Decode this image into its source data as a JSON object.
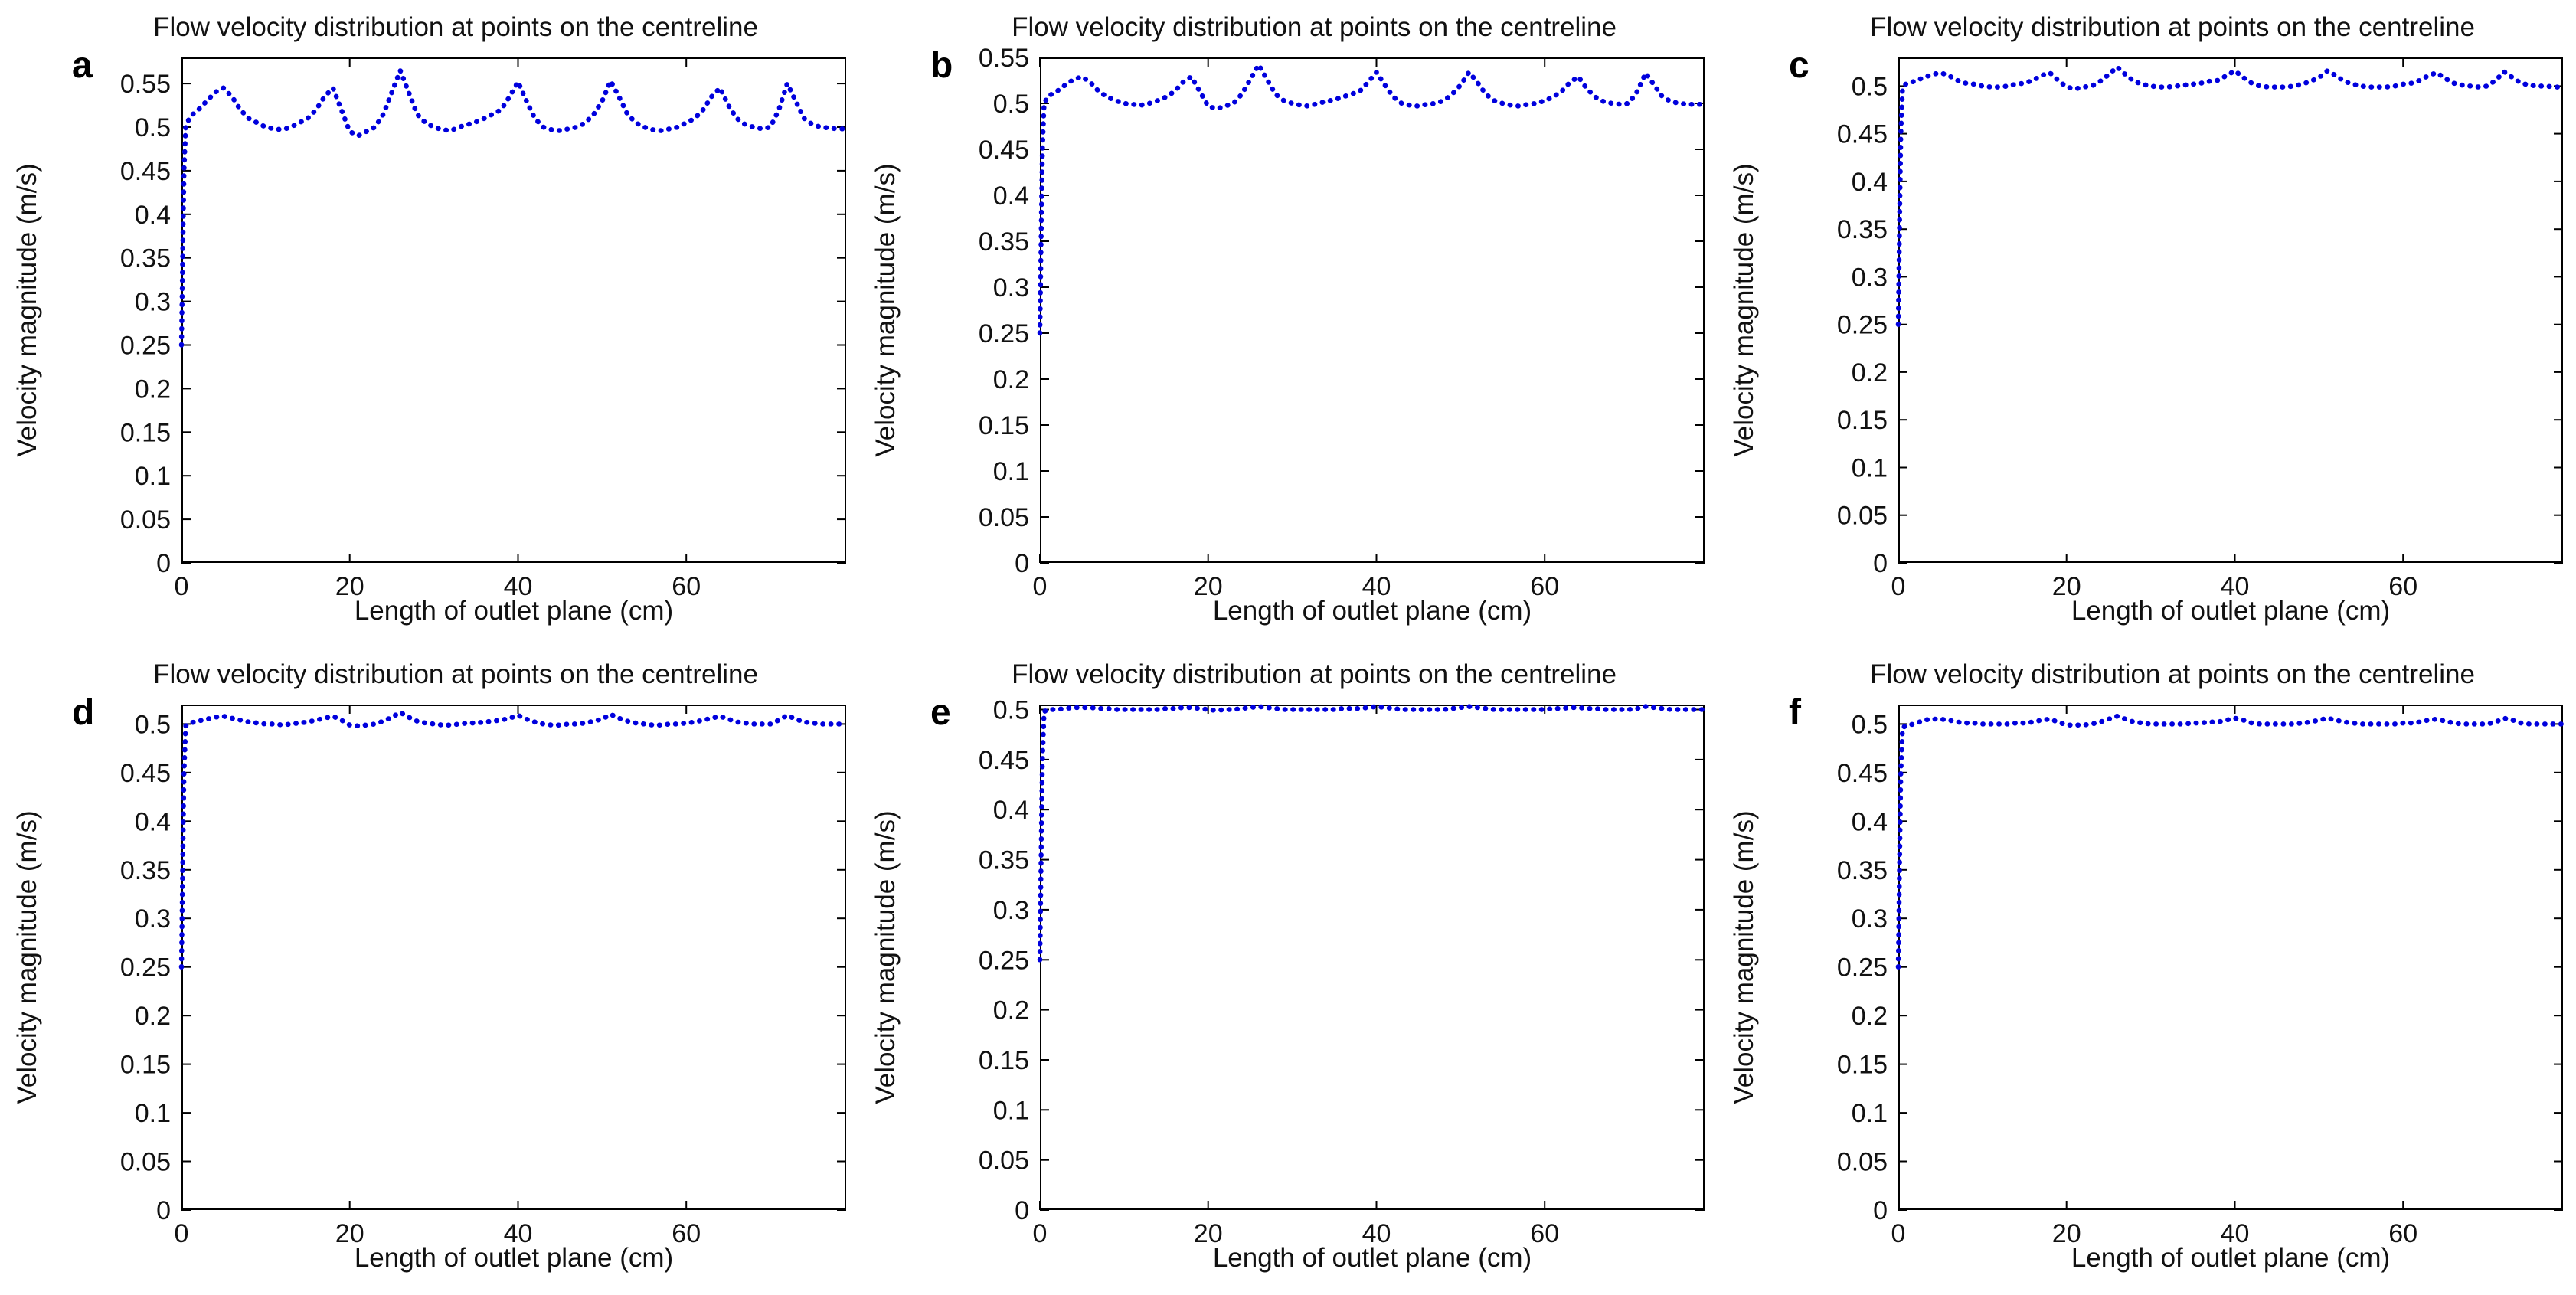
{
  "page": {
    "background": "#ffffff"
  },
  "chart_data": [
    {
      "type": "line",
      "panel_label": "a",
      "title": "Flow velocity distribution at points on the centreline",
      "xlabel": "Length of outlet plane (cm)",
      "ylabel": "Velocity magnitude (m/s)",
      "xlim": [
        0,
        79
      ],
      "ylim": [
        0,
        0.58
      ],
      "xticks": [
        0,
        20,
        40,
        60
      ],
      "yticks": [
        0,
        0.05,
        0.1,
        0.15,
        0.2,
        0.25,
        0.3,
        0.35,
        0.4,
        0.45,
        0.5,
        0.55
      ],
      "line_color": "#0000dd",
      "line_style": "dotted",
      "grid": false,
      "legend": "none",
      "x": [
        0,
        0.1,
        0.2,
        0.3,
        0.5,
        1,
        2,
        3,
        4,
        5,
        6,
        7,
        8,
        9,
        10,
        11,
        12,
        13,
        14,
        15,
        16,
        17,
        18,
        19,
        20,
        21,
        22,
        23,
        24,
        25,
        26,
        27,
        28,
        29,
        30,
        31,
        32,
        33,
        34,
        35,
        36,
        37,
        38,
        39,
        40,
        41,
        42,
        43,
        44,
        45,
        46,
        47,
        48,
        49,
        50,
        51,
        52,
        53,
        54,
        55,
        56,
        57,
        58,
        59,
        60,
        61,
        62,
        63,
        64,
        65,
        66,
        67,
        68,
        69,
        70,
        71,
        72,
        73,
        74,
        75,
        76,
        77,
        78,
        79
      ],
      "y": [
        0.25,
        0.32,
        0.39,
        0.45,
        0.5,
        0.512,
        0.52,
        0.53,
        0.54,
        0.545,
        0.535,
        0.52,
        0.51,
        0.505,
        0.5,
        0.498,
        0.497,
        0.5,
        0.505,
        0.51,
        0.52,
        0.535,
        0.545,
        0.52,
        0.495,
        0.49,
        0.495,
        0.5,
        0.515,
        0.54,
        0.565,
        0.54,
        0.515,
        0.505,
        0.5,
        0.497,
        0.496,
        0.5,
        0.503,
        0.506,
        0.51,
        0.515,
        0.52,
        0.535,
        0.552,
        0.53,
        0.51,
        0.5,
        0.497,
        0.496,
        0.498,
        0.5,
        0.505,
        0.515,
        0.53,
        0.553,
        0.535,
        0.515,
        0.505,
        0.5,
        0.497,
        0.496,
        0.498,
        0.5,
        0.505,
        0.51,
        0.52,
        0.535,
        0.545,
        0.525,
        0.51,
        0.503,
        0.5,
        0.498,
        0.5,
        0.52,
        0.55,
        0.53,
        0.51,
        0.503,
        0.5,
        0.499,
        0.498,
        0.498
      ]
    },
    {
      "type": "line",
      "panel_label": "b",
      "title": "Flow velocity distribution at points on the centreline",
      "xlabel": "Length of outlet plane (cm)",
      "ylabel": "Velocity magnitude (m/s)",
      "xlim": [
        0,
        79
      ],
      "ylim": [
        0,
        0.55
      ],
      "xticks": [
        0,
        20,
        40,
        60
      ],
      "yticks": [
        0,
        0.05,
        0.1,
        0.15,
        0.2,
        0.25,
        0.3,
        0.35,
        0.4,
        0.45,
        0.5,
        0.55
      ],
      "line_color": "#0000dd",
      "line_style": "dotted",
      "grid": false,
      "legend": "none",
      "x": [
        0,
        0.1,
        0.2,
        0.3,
        0.5,
        1,
        2,
        3,
        4,
        5,
        6,
        7,
        8,
        9,
        10,
        11,
        12,
        13,
        14,
        15,
        16,
        17,
        18,
        19,
        20,
        21,
        22,
        23,
        24,
        25,
        26,
        27,
        28,
        29,
        30,
        31,
        32,
        33,
        34,
        35,
        36,
        37,
        38,
        39,
        40,
        41,
        42,
        43,
        44,
        45,
        46,
        47,
        48,
        49,
        50,
        51,
        52,
        53,
        54,
        55,
        56,
        57,
        58,
        59,
        60,
        61,
        62,
        63,
        64,
        65,
        66,
        67,
        68,
        69,
        70,
        71,
        72,
        73,
        74,
        75,
        76,
        77,
        78,
        79
      ],
      "y": [
        0.25,
        0.32,
        0.39,
        0.45,
        0.5,
        0.508,
        0.513,
        0.52,
        0.526,
        0.529,
        0.523,
        0.513,
        0.507,
        0.503,
        0.5,
        0.499,
        0.498,
        0.5,
        0.503,
        0.507,
        0.513,
        0.523,
        0.529,
        0.513,
        0.497,
        0.494,
        0.497,
        0.5,
        0.51,
        0.526,
        0.542,
        0.526,
        0.51,
        0.503,
        0.5,
        0.498,
        0.497,
        0.5,
        0.502,
        0.504,
        0.507,
        0.51,
        0.513,
        0.523,
        0.534,
        0.52,
        0.507,
        0.5,
        0.498,
        0.497,
        0.499,
        0.5,
        0.503,
        0.51,
        0.52,
        0.534,
        0.523,
        0.51,
        0.503,
        0.5,
        0.498,
        0.497,
        0.499,
        0.5,
        0.503,
        0.507,
        0.513,
        0.523,
        0.529,
        0.516,
        0.507,
        0.502,
        0.5,
        0.499,
        0.5,
        0.513,
        0.533,
        0.52,
        0.507,
        0.502,
        0.5,
        0.499,
        0.499,
        0.499
      ]
    },
    {
      "type": "line",
      "panel_label": "c",
      "title": "Flow velocity distribution at points on the centreline",
      "xlabel": "Length of outlet plane (cm)",
      "ylabel": "Velocity magnitude (m/s)",
      "xlim": [
        0,
        79
      ],
      "ylim": [
        0,
        0.53
      ],
      "xticks": [
        0,
        20,
        40,
        60
      ],
      "yticks": [
        0,
        0.05,
        0.1,
        0.15,
        0.2,
        0.25,
        0.3,
        0.35,
        0.4,
        0.45,
        0.5
      ],
      "line_color": "#0000dd",
      "line_style": "dotted",
      "grid": false,
      "legend": "none",
      "x": [
        0,
        0.1,
        0.2,
        0.3,
        0.5,
        1,
        2,
        3,
        4,
        5,
        6,
        7,
        8,
        9,
        10,
        11,
        12,
        13,
        14,
        15,
        16,
        17,
        18,
        19,
        20,
        21,
        22,
        23,
        24,
        25,
        26,
        27,
        28,
        29,
        30,
        31,
        32,
        33,
        34,
        35,
        36,
        37,
        38,
        39,
        40,
        41,
        42,
        43,
        44,
        45,
        46,
        47,
        48,
        49,
        50,
        51,
        52,
        53,
        54,
        55,
        56,
        57,
        58,
        59,
        60,
        61,
        62,
        63,
        64,
        65,
        66,
        67,
        68,
        69,
        70,
        71,
        72,
        73,
        74,
        75,
        76,
        77,
        78,
        79
      ],
      "y": [
        0.25,
        0.32,
        0.39,
        0.45,
        0.498,
        0.503,
        0.505,
        0.509,
        0.512,
        0.514,
        0.511,
        0.506,
        0.503,
        0.502,
        0.5,
        0.499,
        0.499,
        0.5,
        0.502,
        0.503,
        0.506,
        0.511,
        0.514,
        0.506,
        0.499,
        0.497,
        0.499,
        0.5,
        0.505,
        0.512,
        0.52,
        0.512,
        0.505,
        0.502,
        0.5,
        0.499,
        0.499,
        0.5,
        0.501,
        0.502,
        0.503,
        0.505,
        0.506,
        0.511,
        0.516,
        0.509,
        0.503,
        0.5,
        0.499,
        0.499,
        0.499,
        0.5,
        0.502,
        0.505,
        0.509,
        0.516,
        0.511,
        0.505,
        0.502,
        0.5,
        0.499,
        0.499,
        0.499,
        0.5,
        0.502,
        0.503,
        0.506,
        0.511,
        0.514,
        0.508,
        0.503,
        0.501,
        0.5,
        0.499,
        0.5,
        0.506,
        0.515,
        0.509,
        0.503,
        0.501,
        0.5,
        0.5,
        0.499,
        0.499
      ]
    },
    {
      "type": "line",
      "panel_label": "d",
      "title": "Flow velocity distribution at points on the centreline",
      "xlabel": "Length of outlet plane (cm)",
      "ylabel": "Velocity magnitude (m/s)",
      "xlim": [
        0,
        79
      ],
      "ylim": [
        0,
        0.52
      ],
      "xticks": [
        0,
        20,
        40,
        60
      ],
      "yticks": [
        0,
        0.05,
        0.1,
        0.15,
        0.2,
        0.25,
        0.3,
        0.35,
        0.4,
        0.45,
        0.5
      ],
      "line_color": "#0000dd",
      "line_style": "dotted",
      "grid": false,
      "legend": "none",
      "x": [
        0,
        0.1,
        0.2,
        0.3,
        0.5,
        1,
        2,
        3,
        4,
        5,
        6,
        7,
        8,
        9,
        10,
        11,
        12,
        13,
        14,
        15,
        16,
        17,
        18,
        19,
        20,
        21,
        22,
        23,
        24,
        25,
        26,
        27,
        28,
        29,
        30,
        31,
        32,
        33,
        34,
        35,
        36,
        37,
        38,
        39,
        40,
        41,
        42,
        43,
        44,
        45,
        46,
        47,
        48,
        49,
        50,
        51,
        52,
        53,
        54,
        55,
        56,
        57,
        58,
        59,
        60,
        61,
        62,
        63,
        64,
        65,
        66,
        67,
        68,
        69,
        70,
        71,
        72,
        73,
        74,
        75,
        76,
        77,
        78,
        79
      ],
      "y": [
        0.25,
        0.32,
        0.39,
        0.45,
        0.498,
        0.501,
        0.503,
        0.505,
        0.507,
        0.508,
        0.506,
        0.504,
        0.502,
        0.501,
        0.5,
        0.5,
        0.499,
        0.5,
        0.501,
        0.502,
        0.504,
        0.506,
        0.508,
        0.504,
        0.499,
        0.498,
        0.499,
        0.5,
        0.503,
        0.507,
        0.512,
        0.507,
        0.503,
        0.501,
        0.5,
        0.499,
        0.499,
        0.5,
        0.501,
        0.501,
        0.502,
        0.503,
        0.504,
        0.506,
        0.509,
        0.505,
        0.502,
        0.5,
        0.499,
        0.499,
        0.5,
        0.5,
        0.501,
        0.503,
        0.505,
        0.51,
        0.506,
        0.503,
        0.501,
        0.5,
        0.499,
        0.499,
        0.5,
        0.5,
        0.501,
        0.502,
        0.504,
        0.506,
        0.508,
        0.505,
        0.502,
        0.501,
        0.5,
        0.5,
        0.5,
        0.504,
        0.509,
        0.505,
        0.502,
        0.501,
        0.5,
        0.5,
        0.5,
        0.5
      ]
    },
    {
      "type": "line",
      "panel_label": "e",
      "title": "Flow velocity distribution at points on the centreline",
      "xlabel": "Length of outlet plane (cm)",
      "ylabel": "Velocity magnitude (m/s)",
      "xlim": [
        0,
        79
      ],
      "ylim": [
        0,
        0.505
      ],
      "xticks": [
        0,
        20,
        40,
        60
      ],
      "yticks": [
        0,
        0.05,
        0.1,
        0.15,
        0.2,
        0.25,
        0.3,
        0.35,
        0.4,
        0.45,
        0.5
      ],
      "line_color": "#0000dd",
      "line_style": "dotted",
      "grid": false,
      "legend": "none",
      "x": [
        0,
        0.1,
        0.2,
        0.3,
        0.5,
        1,
        2,
        3,
        4,
        5,
        6,
        7,
        8,
        9,
        10,
        11,
        12,
        13,
        14,
        15,
        16,
        17,
        18,
        19,
        20,
        21,
        22,
        23,
        24,
        25,
        26,
        27,
        28,
        29,
        30,
        31,
        32,
        33,
        34,
        35,
        36,
        37,
        38,
        39,
        40,
        41,
        42,
        43,
        44,
        45,
        46,
        47,
        48,
        49,
        50,
        51,
        52,
        53,
        54,
        55,
        56,
        57,
        58,
        59,
        60,
        61,
        62,
        63,
        64,
        65,
        66,
        67,
        68,
        69,
        70,
        71,
        72,
        73,
        74,
        75,
        76,
        77,
        78,
        79
      ],
      "y": [
        0.25,
        0.32,
        0.39,
        0.45,
        0.498,
        0.5,
        0.5,
        0.501,
        0.502,
        0.502,
        0.502,
        0.501,
        0.501,
        0.5,
        0.5,
        0.5,
        0.5,
        0.5,
        0.5,
        0.501,
        0.501,
        0.502,
        0.502,
        0.501,
        0.5,
        0.499,
        0.5,
        0.5,
        0.501,
        0.502,
        0.503,
        0.502,
        0.501,
        0.5,
        0.5,
        0.5,
        0.5,
        0.5,
        0.5,
        0.5,
        0.501,
        0.501,
        0.501,
        0.502,
        0.503,
        0.502,
        0.501,
        0.5,
        0.5,
        0.5,
        0.5,
        0.5,
        0.5,
        0.501,
        0.502,
        0.503,
        0.502,
        0.501,
        0.5,
        0.5,
        0.5,
        0.5,
        0.5,
        0.5,
        0.5,
        0.501,
        0.501,
        0.502,
        0.502,
        0.501,
        0.501,
        0.5,
        0.5,
        0.5,
        0.5,
        0.501,
        0.503,
        0.502,
        0.501,
        0.5,
        0.5,
        0.5,
        0.5,
        0.5
      ]
    },
    {
      "type": "line",
      "panel_label": "f",
      "title": "Flow velocity distribution at points on the centreline",
      "xlabel": "Length of outlet plane (cm)",
      "ylabel": "Velocity magnitude (m/s)",
      "xlim": [
        0,
        79
      ],
      "ylim": [
        0,
        0.52
      ],
      "xticks": [
        0,
        20,
        40,
        60
      ],
      "yticks": [
        0,
        0.05,
        0.1,
        0.15,
        0.2,
        0.25,
        0.3,
        0.35,
        0.4,
        0.45,
        0.5
      ],
      "line_color": "#0000dd",
      "line_style": "dotted",
      "grid": false,
      "legend": "none",
      "x": [
        0,
        0.1,
        0.2,
        0.3,
        0.5,
        1,
        2,
        3,
        4,
        5,
        6,
        7,
        8,
        9,
        10,
        11,
        12,
        13,
        14,
        15,
        16,
        17,
        18,
        19,
        20,
        21,
        22,
        23,
        24,
        25,
        26,
        27,
        28,
        29,
        30,
        31,
        32,
        33,
        34,
        35,
        36,
        37,
        38,
        39,
        40,
        41,
        42,
        43,
        44,
        45,
        46,
        47,
        48,
        49,
        50,
        51,
        52,
        53,
        54,
        55,
        56,
        57,
        58,
        59,
        60,
        61,
        62,
        63,
        64,
        65,
        66,
        67,
        68,
        69,
        70,
        71,
        72,
        73,
        74,
        75,
        76,
        77,
        78,
        79
      ],
      "y": [
        0.25,
        0.32,
        0.39,
        0.45,
        0.496,
        0.499,
        0.5,
        0.504,
        0.505,
        0.505,
        0.504,
        0.502,
        0.501,
        0.501,
        0.5,
        0.5,
        0.5,
        0.5,
        0.501,
        0.501,
        0.502,
        0.504,
        0.505,
        0.502,
        0.499,
        0.499,
        0.499,
        0.5,
        0.502,
        0.505,
        0.508,
        0.505,
        0.502,
        0.501,
        0.5,
        0.5,
        0.5,
        0.5,
        0.5,
        0.501,
        0.501,
        0.502,
        0.502,
        0.504,
        0.506,
        0.504,
        0.501,
        0.5,
        0.5,
        0.5,
        0.5,
        0.5,
        0.501,
        0.502,
        0.504,
        0.506,
        0.504,
        0.502,
        0.501,
        0.5,
        0.5,
        0.5,
        0.5,
        0.5,
        0.501,
        0.501,
        0.502,
        0.504,
        0.505,
        0.503,
        0.501,
        0.5,
        0.5,
        0.5,
        0.5,
        0.502,
        0.506,
        0.504,
        0.501,
        0.5,
        0.5,
        0.5,
        0.5,
        0.5
      ]
    }
  ]
}
